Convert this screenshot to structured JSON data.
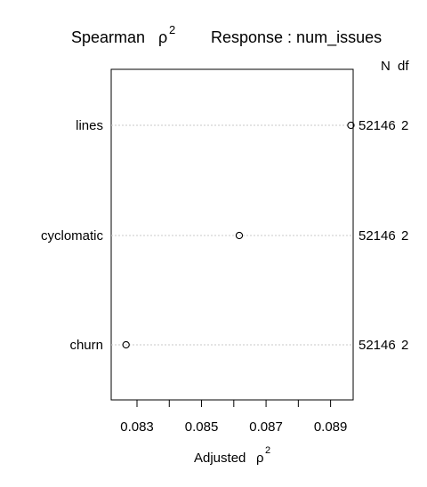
{
  "chart_data": {
    "type": "dot",
    "title_left": "Spearman",
    "title_left_symbol": "ρ",
    "title_left_sup": "2",
    "title_right": "Response : num_issues",
    "columns_header": {
      "n": "N",
      "df": "df"
    },
    "categories": [
      "lines",
      "cyclomatic",
      "churn"
    ],
    "values": [
      0.08963,
      0.08617,
      0.08266
    ],
    "n_values": [
      "52146",
      "52146",
      "52146"
    ],
    "df_values": [
      "2",
      "2",
      "2"
    ],
    "xlabel": "Adjusted",
    "xlabel_symbol": "ρ",
    "xlabel_sup": "2",
    "xlim": [
      0.0822,
      0.0897
    ],
    "ticks": [
      0.083,
      0.084,
      0.085,
      0.086,
      0.087,
      0.088,
      0.089
    ],
    "tick_labels": [
      "0.083",
      "",
      "0.085",
      "",
      "0.087",
      "",
      "0.089"
    ],
    "grid": "dotted horizontal",
    "point_style": "open circle"
  }
}
